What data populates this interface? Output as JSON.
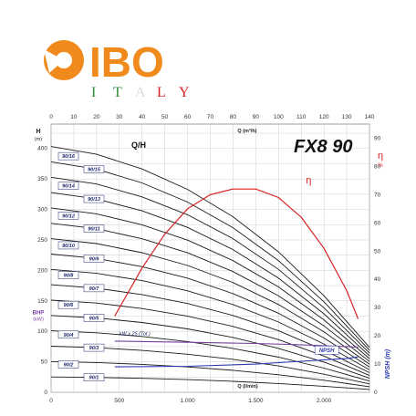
{
  "logo": {
    "brand": "IBO",
    "sub": [
      "I",
      "T",
      "A",
      "L",
      "Y"
    ],
    "sub_colors": [
      "#2e8b3a",
      "#2e8b3a",
      "#d9d9d9",
      "#d62020",
      "#d62020"
    ],
    "brand_color": "#f08a1c"
  },
  "chart_data": {
    "type": "line",
    "title": "FX8 90",
    "subtitle": "Q/H",
    "x_top": {
      "label": "Q (m³/h)",
      "ticks": [
        0,
        10,
        20,
        30,
        40,
        50,
        60,
        70,
        80,
        90,
        100,
        110,
        120,
        130,
        140
      ],
      "range": [
        0,
        140
      ]
    },
    "x_bottom": {
      "label": "Q (l/min)",
      "ticks": [
        "0",
        "500",
        "1.000",
        "1.500",
        "2.000"
      ],
      "range": [
        0,
        2333
      ]
    },
    "y_left": {
      "label": "H",
      "unit": "(m)",
      "ticks": [
        0,
        50,
        100,
        150,
        200,
        250,
        300,
        350,
        400
      ],
      "range": [
        0,
        440
      ]
    },
    "y_left_bhp": {
      "label": "BHP",
      "unit": "(kW)"
    },
    "y_right": {
      "eta_label": "η",
      "eta_unit": "%",
      "npsh_label": "NPSH (m)",
      "ticks": [
        0,
        10,
        20,
        30,
        40,
        50,
        60,
        70,
        80,
        90
      ],
      "range": [
        0,
        95
      ]
    },
    "series_labels": [
      "90/16",
      "90/15",
      "90/14",
      "90/13",
      "90/12",
      "90/11",
      "90/10",
      "90/9",
      "90/8",
      "90/7",
      "90/6",
      "90/5",
      "90/4",
      "90/3",
      "90/2",
      "90/1"
    ],
    "head_q": [
      0,
      20,
      40,
      60,
      80,
      100,
      120,
      140
    ],
    "head_per_stage": [
      25.2,
      24.4,
      22.9,
      20.8,
      18.0,
      14.4,
      9.9,
      4.6
    ],
    "stages": [
      16,
      15,
      14,
      13,
      12,
      11,
      10,
      9,
      8,
      7,
      6,
      5,
      4,
      3,
      2,
      1
    ],
    "efficiency": {
      "name": "η",
      "q": [
        28,
        40,
        50,
        60,
        70,
        80,
        90,
        100,
        110,
        120,
        130,
        135
      ],
      "values": [
        27,
        44,
        56,
        65,
        70,
        72,
        72,
        69,
        62,
        51,
        36,
        26
      ]
    },
    "npsh": {
      "name": "NPSH",
      "q": [
        28,
        60,
        90,
        110,
        130,
        135
      ],
      "values": [
        9,
        9.2,
        10,
        11,
        12,
        12.5
      ]
    },
    "power": {
      "name": "kW x 25 (Tot.)",
      "q": [
        28,
        60,
        90,
        110,
        130,
        135
      ],
      "values": [
        84,
        82,
        80,
        78,
        75,
        74
      ]
    },
    "colors": {
      "head": "#1a1a1a",
      "efficiency": "#d92020",
      "npsh": "#2a3bb0",
      "power": "#7a3fa0",
      "grid": "#cfcfcf",
      "label_box": "#1e2a6e"
    }
  }
}
